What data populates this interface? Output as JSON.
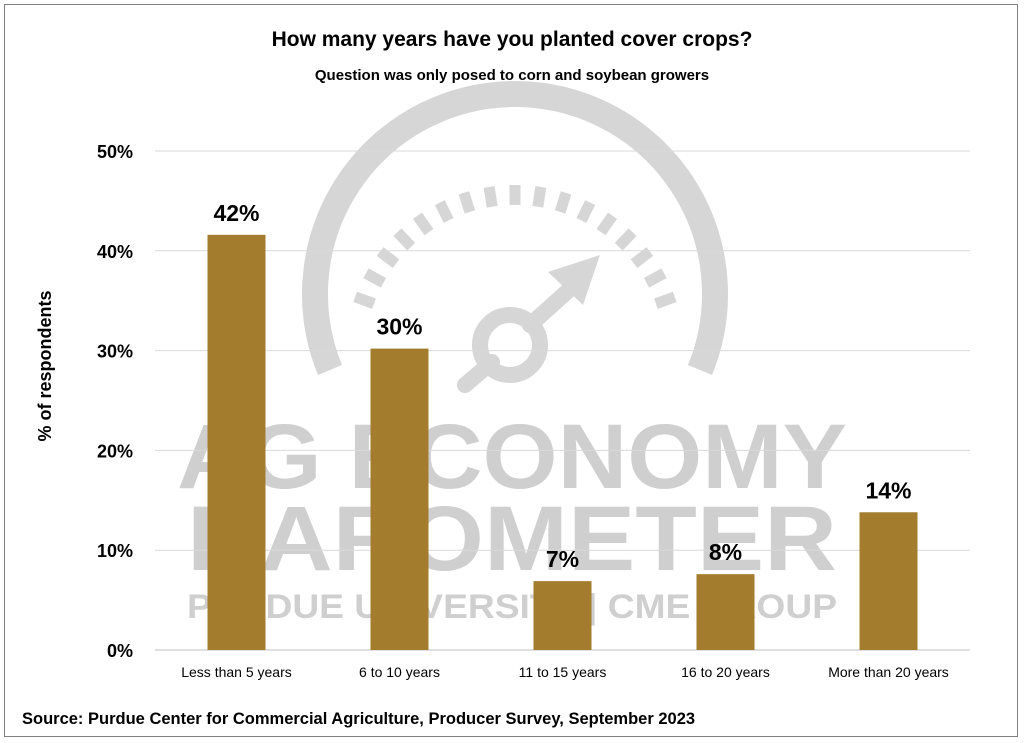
{
  "chart_data": {
    "type": "bar",
    "title": "How many years have you planted cover crops?",
    "subtitle": "Question was only posed to corn and soybean growers",
    "ylabel": "% of respondents",
    "xlabel": "",
    "categories": [
      "Less than 5 years",
      "6 to 10 years",
      "11 to 15 years",
      "16 to 20 years",
      "More than 20 years"
    ],
    "values": [
      41.6,
      30.2,
      6.9,
      7.6,
      13.8
    ],
    "data_labels": [
      "42%",
      "30%",
      "7%",
      "8%",
      "14%"
    ],
    "ylim": [
      0,
      50
    ],
    "yticks": [
      0,
      10,
      20,
      30,
      40,
      50
    ],
    "ytick_labels": [
      "0%",
      "10%",
      "20%",
      "30%",
      "40%",
      "50%"
    ],
    "grid": true,
    "legend": "none",
    "bar_color": "#a47c2e",
    "source": "Source: Purdue Center for Commercial Agriculture, Producer Survey, September 2023"
  },
  "watermark": {
    "line1": "AG ECONOMY",
    "line2": "BAROMETER",
    "line3": "PURDUE UNIVERSITY | CME GROUP",
    "icon": "gauge-icon",
    "color": "#cfcfcf"
  }
}
